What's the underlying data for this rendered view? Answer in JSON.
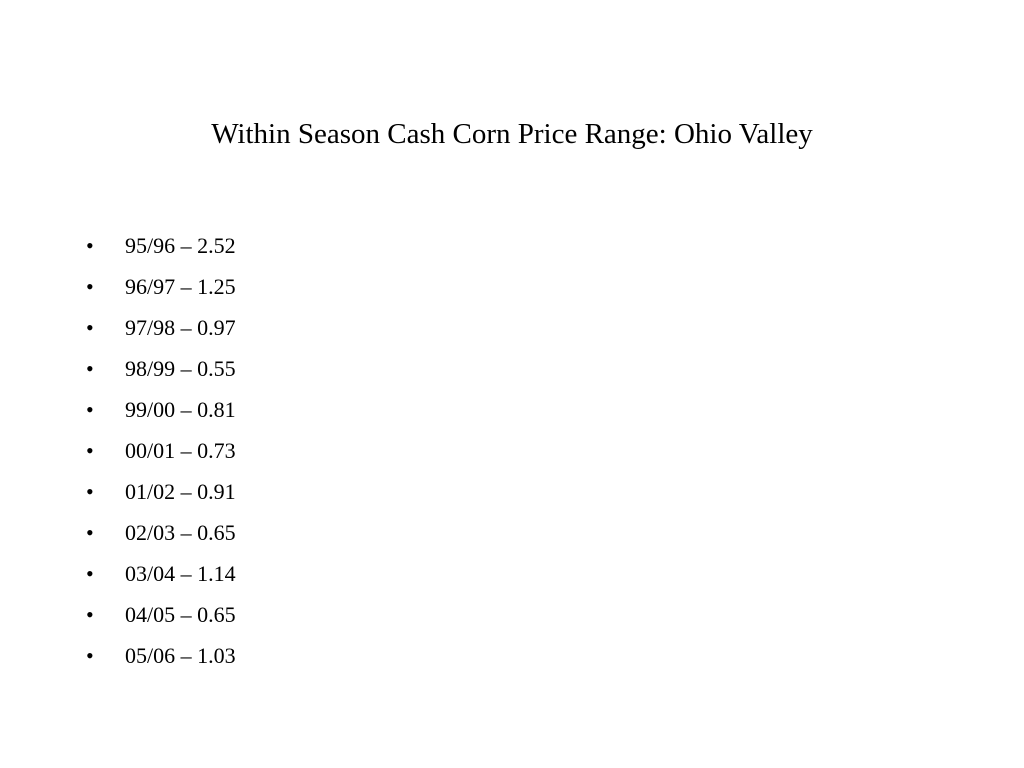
{
  "header": {
    "title": "Within Season Cash Corn Price Range: Ohio Valley"
  },
  "list": {
    "items": [
      "95/96 – 2.52",
      "96/97 – 1.25",
      "97/98 – 0.97",
      "98/99 – 0.55",
      "99/00 – 0.81",
      "00/01 – 0.73",
      "01/02 – 0.91",
      "02/03 – 0.65",
      "03/04 – 1.14",
      "04/05 – 0.65",
      "05/06 – 1.03"
    ]
  }
}
